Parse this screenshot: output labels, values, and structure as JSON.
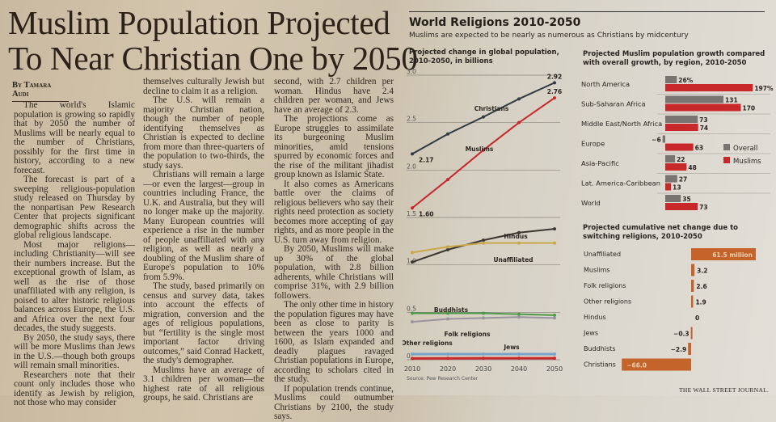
{
  "article": {
    "headline": [
      "Muslim Population Projected",
      "To Near Christian One by 2050"
    ],
    "byline": "By Tamara Audi",
    "columns": [
      [
        {
          "text": "The world's Islamic population is growing so rapidly that by 2050 the number of Muslims will be nearly equal to the number of Christians, possibly for the first time in history, according to a new forecast.",
          "cont": false
        },
        {
          "text": "The forecast is part of a sweeping religious-population study released on Thursday by the nonpartisan Pew Research Center that projects significant demographic shifts across the global religious landscape.",
          "cont": false
        },
        {
          "text": "Most major religions—including Christianity—will see their numbers increase. But the exceptional growth of Islam, as well as the rise of those unaffiliated with any religion, is poised to alter historic religious balances across Europe, the U.S. and Africa over the next four decades, the study suggests.",
          "cont": false
        },
        {
          "text": "By 2050, the study says, there will be more Muslims than Jews in the U.S.—though both groups will remain small minorities.",
          "cont": false
        },
        {
          "text": "Researchers note that their count only includes those who identify as Jewish by religion, not those who may consider",
          "cont": false
        }
      ],
      [
        {
          "text": "themselves culturally Jewish but decline to claim it as a religion.",
          "cont": true
        },
        {
          "text": "The U.S. will remain a majority Christian nation, though the number of people identifying themselves as Christian is expected to decline from more than three-quarters of the population to two-thirds, the study says.",
          "cont": false
        },
        {
          "text": "Christians will remain a large—or even the largest—group in countries including France, the U.K. and Australia, but they will no longer make up the majority. Many European countries will experience a rise in the number of people unaffiliated with any religion, as well as nearly a doubling of the Muslim share of Europe's population to 10% from 5.9%.",
          "cont": false
        },
        {
          "text": "The study, based primarily on census and survey data, takes into account the effects of migration, conversion and the ages of religious populations, but “fertility is the single most important factor driving outcomes,” said Conrad Hackett, the study's demographer.",
          "cont": false
        },
        {
          "text": "Muslims have an average of 3.1 children per woman—the highest rate of all religious groups, he said. Christians are",
          "cont": false
        }
      ],
      [
        {
          "text": "second, with 2.7 children per woman. Hindus have 2.4 children per woman, and Jews have an average of 2.3.",
          "cont": true
        },
        {
          "text": "The projections come as Europe struggles to assimilate its burgeoning Muslim minorities, amid tensions spurred by economic forces and the rise of the militant jihadist group known as Islamic State.",
          "cont": false
        },
        {
          "text": "It also comes as Americans battle over the claims of religious believers who say their rights need protection as society becomes more accepting of gay rights, and as more people in the U.S. turn away from religion.",
          "cont": false
        },
        {
          "text": "By 2050, Muslims will make up 30% of the global population, with 2.8 billion adherents, while Christians will comprise 31%, with 2.9 billion followers.",
          "cont": false
        },
        {
          "text": "The only other time in history the population figures may have been as close to parity is between the years 1000 and 1600, as Islam expanded and deadly plagues ravaged Christian populations in Europe, according to scholars cited in the study.",
          "cont": false
        },
        {
          "text": "If population trends continue, Muslims could outnumber Christians by 2100, the study says.",
          "cont": false
        }
      ]
    ]
  },
  "graphic": {
    "title": "World Religions 2010-2050",
    "subtitle": "Muslims are expected to be nearly as numerous as Christians by midcentury",
    "source": "Source: Pew Research Center",
    "credit": "THE WALL STREET JOURNAL."
  },
  "chart_data": [
    {
      "type": "line",
      "title": "Projected change in global population, 2010-2050, in billions",
      "x": [
        2010,
        2020,
        2030,
        2040,
        2050
      ],
      "xticks": [
        "2010",
        "2020",
        "2030",
        "2040",
        "2050"
      ],
      "ylim": [
        0,
        3.0
      ],
      "yticks": [
        "0",
        "0.5",
        "1.0",
        "1.5",
        "2.0",
        "2.5",
        "3.0"
      ],
      "ytick_values": [
        0,
        0.5,
        1.0,
        1.5,
        2.0,
        2.5,
        3.0
      ],
      "series": [
        {
          "name": "Christians",
          "color": "#2f3a44",
          "values": [
            2.17,
            2.38,
            2.56,
            2.75,
            2.92
          ],
          "start_label": "2.17",
          "end_label": "2.92"
        },
        {
          "name": "Muslims",
          "color": "#c8282a",
          "values": [
            1.6,
            1.9,
            2.21,
            2.5,
            2.76
          ],
          "start_label": "1.60",
          "end_label": "2.76"
        },
        {
          "name": "Hindus",
          "color": "#3b3630",
          "values": [
            1.03,
            1.16,
            1.26,
            1.34,
            1.38
          ]
        },
        {
          "name": "Unaffiliated",
          "color": "#c9a84a",
          "values": [
            1.13,
            1.19,
            1.23,
            1.23,
            1.23
          ]
        },
        {
          "name": "Buddhists",
          "color": "#4d9a48",
          "values": [
            0.49,
            0.49,
            0.49,
            0.48,
            0.47
          ]
        },
        {
          "name": "Folk religions",
          "color": "#9a93a0",
          "values": [
            0.4,
            0.43,
            0.44,
            0.45,
            0.44
          ]
        },
        {
          "name": "Other religions",
          "color": "#7aa3c8",
          "values": [
            0.06,
            0.06,
            0.06,
            0.06,
            0.06
          ]
        },
        {
          "name": "Jews",
          "color": "#c8282a",
          "values": [
            0.014,
            0.015,
            0.016,
            0.016,
            0.016
          ]
        }
      ],
      "source": "Source: Pew Research Center"
    },
    {
      "type": "bar",
      "title": "Projected Muslim population growth compared with overall growth, by region, 2010-2050",
      "categories": [
        "North America",
        "Sub-Saharan Africa",
        "Middle East/North Africa",
        "Europe",
        "Asia-Pacific",
        "Lat. America-Caribbean",
        "World"
      ],
      "series": [
        {
          "name": "Overall",
          "color": "#7a7470",
          "values": [
            26,
            131,
            73,
            -6,
            22,
            27,
            35
          ],
          "labels": [
            "26%",
            "131",
            "73",
            "−6",
            "22",
            "27",
            "35"
          ]
        },
        {
          "name": "Muslims",
          "color": "#c8282a",
          "values": [
            197,
            170,
            74,
            63,
            48,
            13,
            73
          ],
          "labels": [
            "197%",
            "170",
            "74",
            "63",
            "48",
            "13",
            "73"
          ]
        }
      ],
      "unit": "percent",
      "legend": "right"
    },
    {
      "type": "bar",
      "title": "Projected cumulative net change due to switching religions, 2010-2050",
      "categories": [
        "Unaffiliated",
        "Muslims",
        "Folk religions",
        "Other religions",
        "Hindus",
        "Jews",
        "Buddhists",
        "Christians"
      ],
      "values": [
        61.5,
        3.2,
        2.6,
        1.9,
        0,
        -0.3,
        -2.9,
        -66.0
      ],
      "labels": [
        "61.5 million",
        "3.2",
        "2.6",
        "1.9",
        "0",
        "−0.3",
        "−2.9",
        "−66.0"
      ],
      "unit": "millions",
      "color": "#c5642a"
    }
  ]
}
